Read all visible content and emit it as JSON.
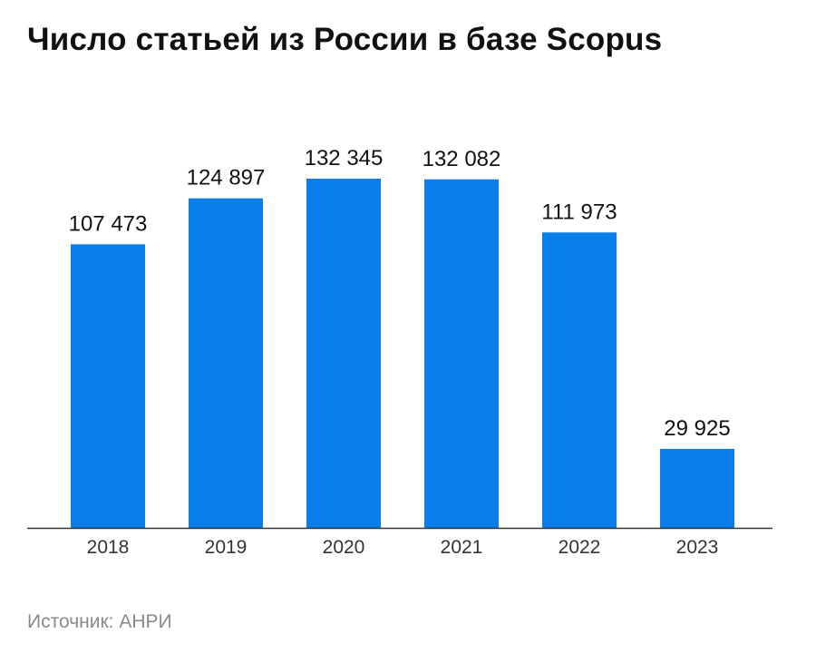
{
  "page": {
    "title": "Число статьей из России в базе Scopus",
    "source": "Источник: АНРИ"
  },
  "colors": {
    "bar": "#0a7eea",
    "axis": "#333333",
    "text": "#111111",
    "tick": "#333333"
  },
  "chart_data": {
    "type": "bar",
    "categories": [
      "2018",
      "2019",
      "2020",
      "2021",
      "2022",
      "2023"
    ],
    "values": [
      107473,
      124897,
      132345,
      132082,
      111973,
      29925
    ],
    "value_labels": [
      "107 473",
      "124 897",
      "132 345",
      "132 082",
      "111 973",
      "29 925"
    ],
    "title": "Число статьей из России в базе Scopus",
    "xlabel": "",
    "ylabel": "",
    "ylim": [
      0,
      132345
    ],
    "grid": false,
    "legend": "none"
  }
}
